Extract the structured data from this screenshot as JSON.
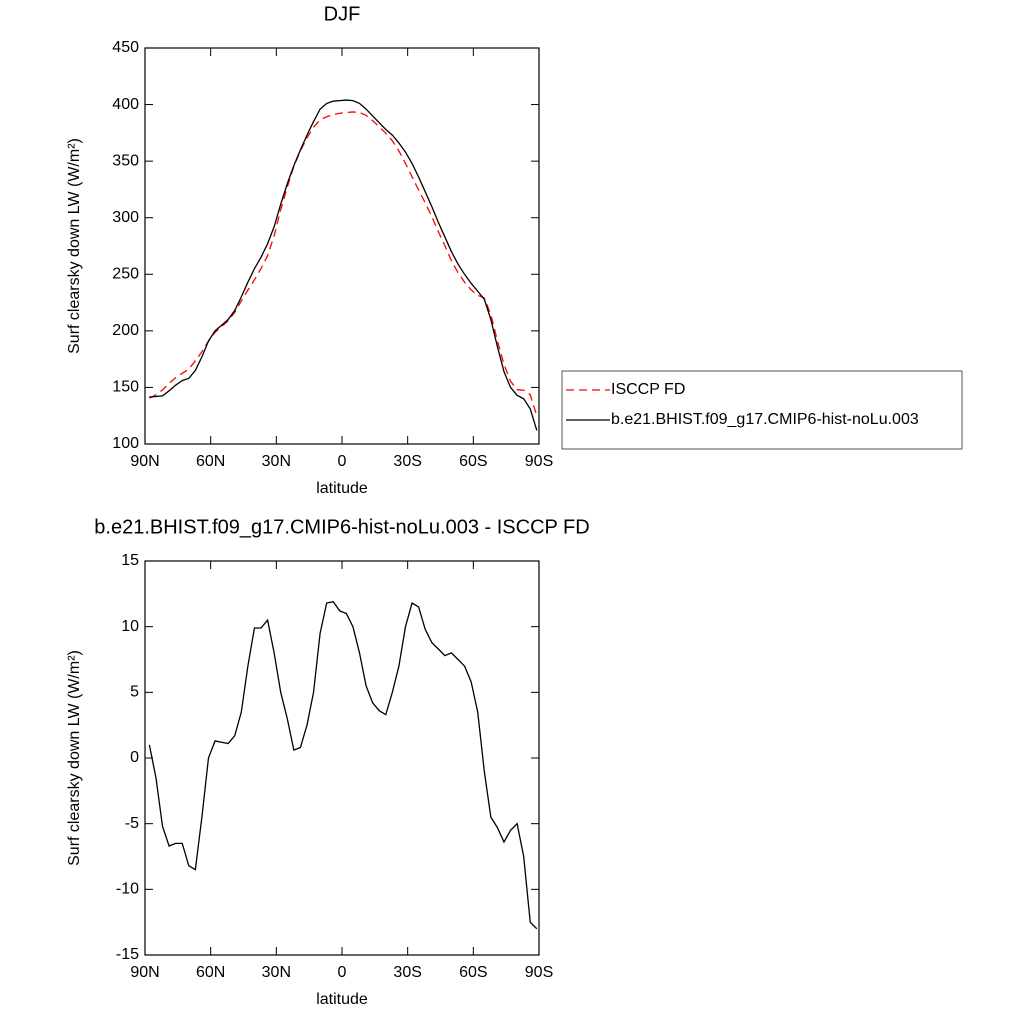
{
  "chart_data": [
    {
      "type": "line",
      "title": "DJF",
      "xlabel": "latitude",
      "ylabel": "Surf clearsky down LW (W/m²)",
      "xlim": [
        90,
        -90
      ],
      "xticks": [
        {
          "value": 90,
          "label": "90N"
        },
        {
          "value": 60,
          "label": "60N"
        },
        {
          "value": 30,
          "label": "30N"
        },
        0,
        {
          "value": -30,
          "label": "30S"
        },
        {
          "value": -60,
          "label": "60S"
        },
        {
          "value": -90,
          "label": "90S"
        }
      ],
      "ylim": [
        100,
        450
      ],
      "yticks": [
        100,
        150,
        200,
        250,
        300,
        350,
        400,
        450
      ],
      "legend": "right",
      "x": [
        88,
        85,
        82,
        79,
        76,
        73,
        70,
        67,
        64,
        61,
        58,
        55,
        52,
        49,
        46,
        43,
        40,
        37,
        34,
        31,
        28,
        25,
        22,
        19,
        16,
        13,
        10,
        7,
        4,
        1,
        -2,
        -5,
        -8,
        -11,
        -14,
        -17,
        -20,
        -23,
        -26,
        -29,
        -32,
        -35,
        -38,
        -41,
        -44,
        -47,
        -50,
        -53,
        -56,
        -59,
        -62,
        -65,
        -68,
        -71,
        -74,
        -77,
        -80,
        -83,
        -86,
        -89
      ],
      "series": [
        {
          "name": "ISCCP FD",
          "color": "#ff0000",
          "linestyle": "dashed",
          "values": [
            140.5,
            143.5,
            147.7,
            153.7,
            158.5,
            162.5,
            166.2,
            173.5,
            181.5,
            191,
            198.7,
            203.8,
            208.9,
            216.3,
            226.5,
            236,
            245.1,
            255.1,
            266.5,
            284,
            307,
            327,
            345.4,
            359.2,
            370.5,
            380,
            386.5,
            389.2,
            391.1,
            392.3,
            393,
            393.5,
            393,
            390.5,
            385.8,
            380.4,
            374.7,
            368,
            359,
            348,
            336.2,
            324.5,
            313.2,
            301.2,
            287.7,
            275.2,
            262,
            251.5,
            243,
            236.2,
            231.5,
            229,
            214.5,
            191.3,
            170.4,
            155.5,
            148,
            147.5,
            143.5,
            125
          ]
        },
        {
          "name": "b.e21.BHIST.f09_g17.CMIP6-hist-noLu.003",
          "color": "#000000",
          "linestyle": "solid",
          "values": [
            141.5,
            142,
            142.5,
            147,
            152,
            156,
            158,
            165,
            177,
            191,
            200,
            205,
            210,
            218,
            230,
            243,
            255,
            265,
            277,
            292,
            312,
            330,
            346,
            360,
            373,
            385,
            396,
            401,
            403,
            403.5,
            404,
            403.5,
            401,
            396,
            390,
            384,
            378,
            373,
            366,
            358,
            348,
            336,
            323,
            310,
            296,
            283,
            270,
            259,
            250,
            242,
            235,
            228,
            210,
            186,
            164,
            150,
            143,
            140,
            131,
            112
          ]
        }
      ]
    },
    {
      "type": "line",
      "title": "b.e21.BHIST.f09_g17.CMIP6-hist-noLu.003 - ISCCP FD",
      "xlabel": "latitude",
      "ylabel": "Surf clearsky down LW (W/m²)",
      "xlim": [
        90,
        -90
      ],
      "xticks": [
        {
          "value": 90,
          "label": "90N"
        },
        {
          "value": 60,
          "label": "60N"
        },
        {
          "value": 30,
          "label": "30N"
        },
        0,
        {
          "value": -30,
          "label": "30S"
        },
        {
          "value": -60,
          "label": "60S"
        },
        {
          "value": -90,
          "label": "90S"
        }
      ],
      "ylim": [
        -15,
        15
      ],
      "yticks": [
        -15,
        -10,
        -5,
        0,
        5,
        10,
        15
      ],
      "x": [
        88,
        85,
        82,
        79,
        76,
        73,
        70,
        67,
        64,
        61,
        58,
        55,
        52,
        49,
        46,
        43,
        40,
        37,
        34,
        31,
        28,
        25,
        22,
        19,
        16,
        13,
        10,
        7,
        4,
        1,
        -2,
        -5,
        -8,
        -11,
        -14,
        -17,
        -20,
        -23,
        -26,
        -29,
        -32,
        -35,
        -38,
        -41,
        -44,
        -47,
        -50,
        -53,
        -56,
        -59,
        -62,
        -65,
        -68,
        -71,
        -74,
        -77,
        -80,
        -83,
        -86,
        -89
      ],
      "color": "#000000",
      "values": [
        1.0,
        -1.5,
        -5.2,
        -6.7,
        -6.5,
        -6.5,
        -8.2,
        -8.5,
        -4.5,
        0,
        1.3,
        1.2,
        1.1,
        1.7,
        3.5,
        7,
        9.9,
        9.9,
        10.5,
        8,
        5,
        3,
        0.6,
        0.8,
        2.5,
        5,
        9.5,
        11.8,
        11.9,
        11.2,
        11,
        10,
        8,
        5.5,
        4.2,
        3.6,
        3.3,
        5,
        7,
        10,
        11.8,
        11.5,
        9.8,
        8.8,
        8.3,
        7.8,
        8,
        7.5,
        7,
        5.8,
        3.5,
        -1,
        -4.5,
        -5.3,
        -6.4,
        -5.5,
        -5,
        -7.5,
        -12.5,
        -13
      ]
    }
  ]
}
